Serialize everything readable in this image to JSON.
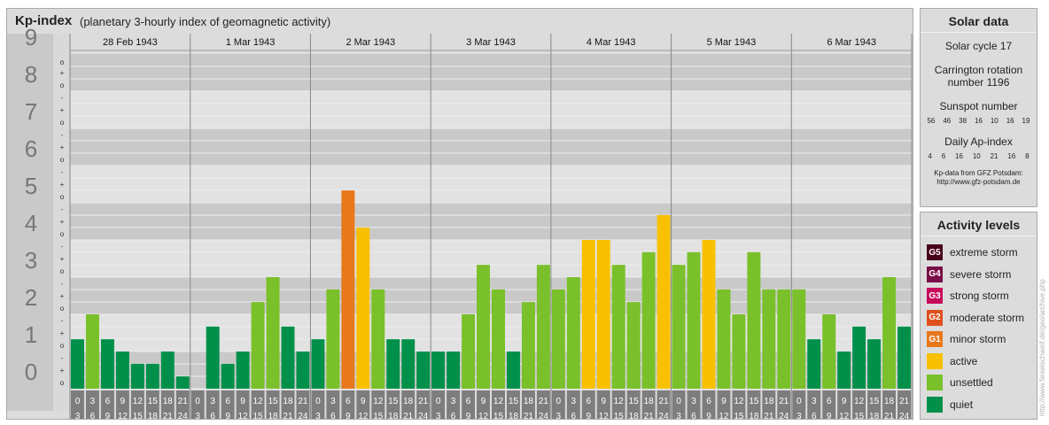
{
  "header": {
    "title": "Kp-index",
    "subtitle": "(planetary 3-hourly index of geomagnetic activity)"
  },
  "chart_data": {
    "type": "bar",
    "ylim": [
      0,
      9
    ],
    "y_ticks": [
      "0",
      "1",
      "2",
      "3",
      "4",
      "5",
      "6",
      "7",
      "8",
      "9"
    ],
    "minor_tick_labels": [
      "o",
      "+",
      "-"
    ],
    "days": [
      "28 Feb 1943",
      "1 Mar 1943",
      "2 Mar 1943",
      "3 Mar 1943",
      "4 Mar 1943",
      "5 Mar 1943",
      "6 Mar 1943"
    ],
    "interval_starts": [
      "0",
      "3",
      "6",
      "9",
      "12",
      "15",
      "18",
      "21"
    ],
    "interval_ends": [
      "3",
      "6",
      "9",
      "12",
      "15",
      "18",
      "21",
      "24"
    ],
    "values": [
      [
        1.33,
        2.0,
        1.33,
        1.0,
        0.67,
        0.67,
        1.0,
        0.33
      ],
      [
        0.0,
        1.67,
        0.67,
        1.0,
        2.33,
        3.0,
        1.67,
        1.0
      ],
      [
        1.33,
        2.67,
        5.33,
        4.33,
        2.67,
        1.33,
        1.33,
        1.0
      ],
      [
        1.0,
        1.0,
        2.0,
        3.33,
        2.67,
        1.0,
        2.33,
        3.33
      ],
      [
        2.67,
        3.0,
        4.0,
        4.0,
        3.33,
        2.33,
        3.67,
        4.67
      ],
      [
        3.33,
        3.67,
        4.0,
        2.67,
        2.0,
        3.67,
        2.67,
        2.67
      ],
      [
        2.67,
        1.33,
        2.0,
        1.0,
        1.67,
        1.33,
        3.0,
        1.67
      ]
    ],
    "level_colors": {
      "quiet": "#00904a",
      "unsettled": "#7ac02a",
      "active": "#f9c000",
      "G1": "#e8781c",
      "G2": "#e0501c",
      "G3": "#c80c5c",
      "G4": "#7a0c48",
      "G5": "#480018"
    }
  },
  "solar": {
    "title": "Solar data",
    "cycle": "Solar cycle 17",
    "carrington_line1": "Carrington rotation",
    "carrington_line2": "number 1196",
    "sunspot_title": "Sunspot number",
    "sunspots": [
      "56",
      "46",
      "38",
      "16",
      "10",
      "16",
      "19"
    ],
    "ap_title": "Daily Ap-index",
    "ap": [
      "4",
      "6",
      "16",
      "10",
      "21",
      "16",
      "8"
    ],
    "credit_line1": "Kp-data from GFZ Potsdam:",
    "credit_line2": "http://www.gfz-potsdam.de"
  },
  "levels": {
    "title": "Activity levels",
    "items": [
      {
        "badge": "G5",
        "label": "extreme storm",
        "color": "#480018"
      },
      {
        "badge": "G4",
        "label": "severe storm",
        "color": "#7a0c48"
      },
      {
        "badge": "G3",
        "label": "strong storm",
        "color": "#c80c5c"
      },
      {
        "badge": "G2",
        "label": "moderate storm",
        "color": "#e0501c"
      },
      {
        "badge": "G1",
        "label": "minor storm",
        "color": "#e8781c"
      },
      {
        "badge": "",
        "label": "active",
        "color": "#f9c000"
      },
      {
        "badge": "",
        "label": "unsettled",
        "color": "#7ac02a"
      },
      {
        "badge": "",
        "label": "quiet",
        "color": "#00904a"
      }
    ]
  },
  "side_credit": "http://www.fieselschweif.de/geo/archive.php"
}
